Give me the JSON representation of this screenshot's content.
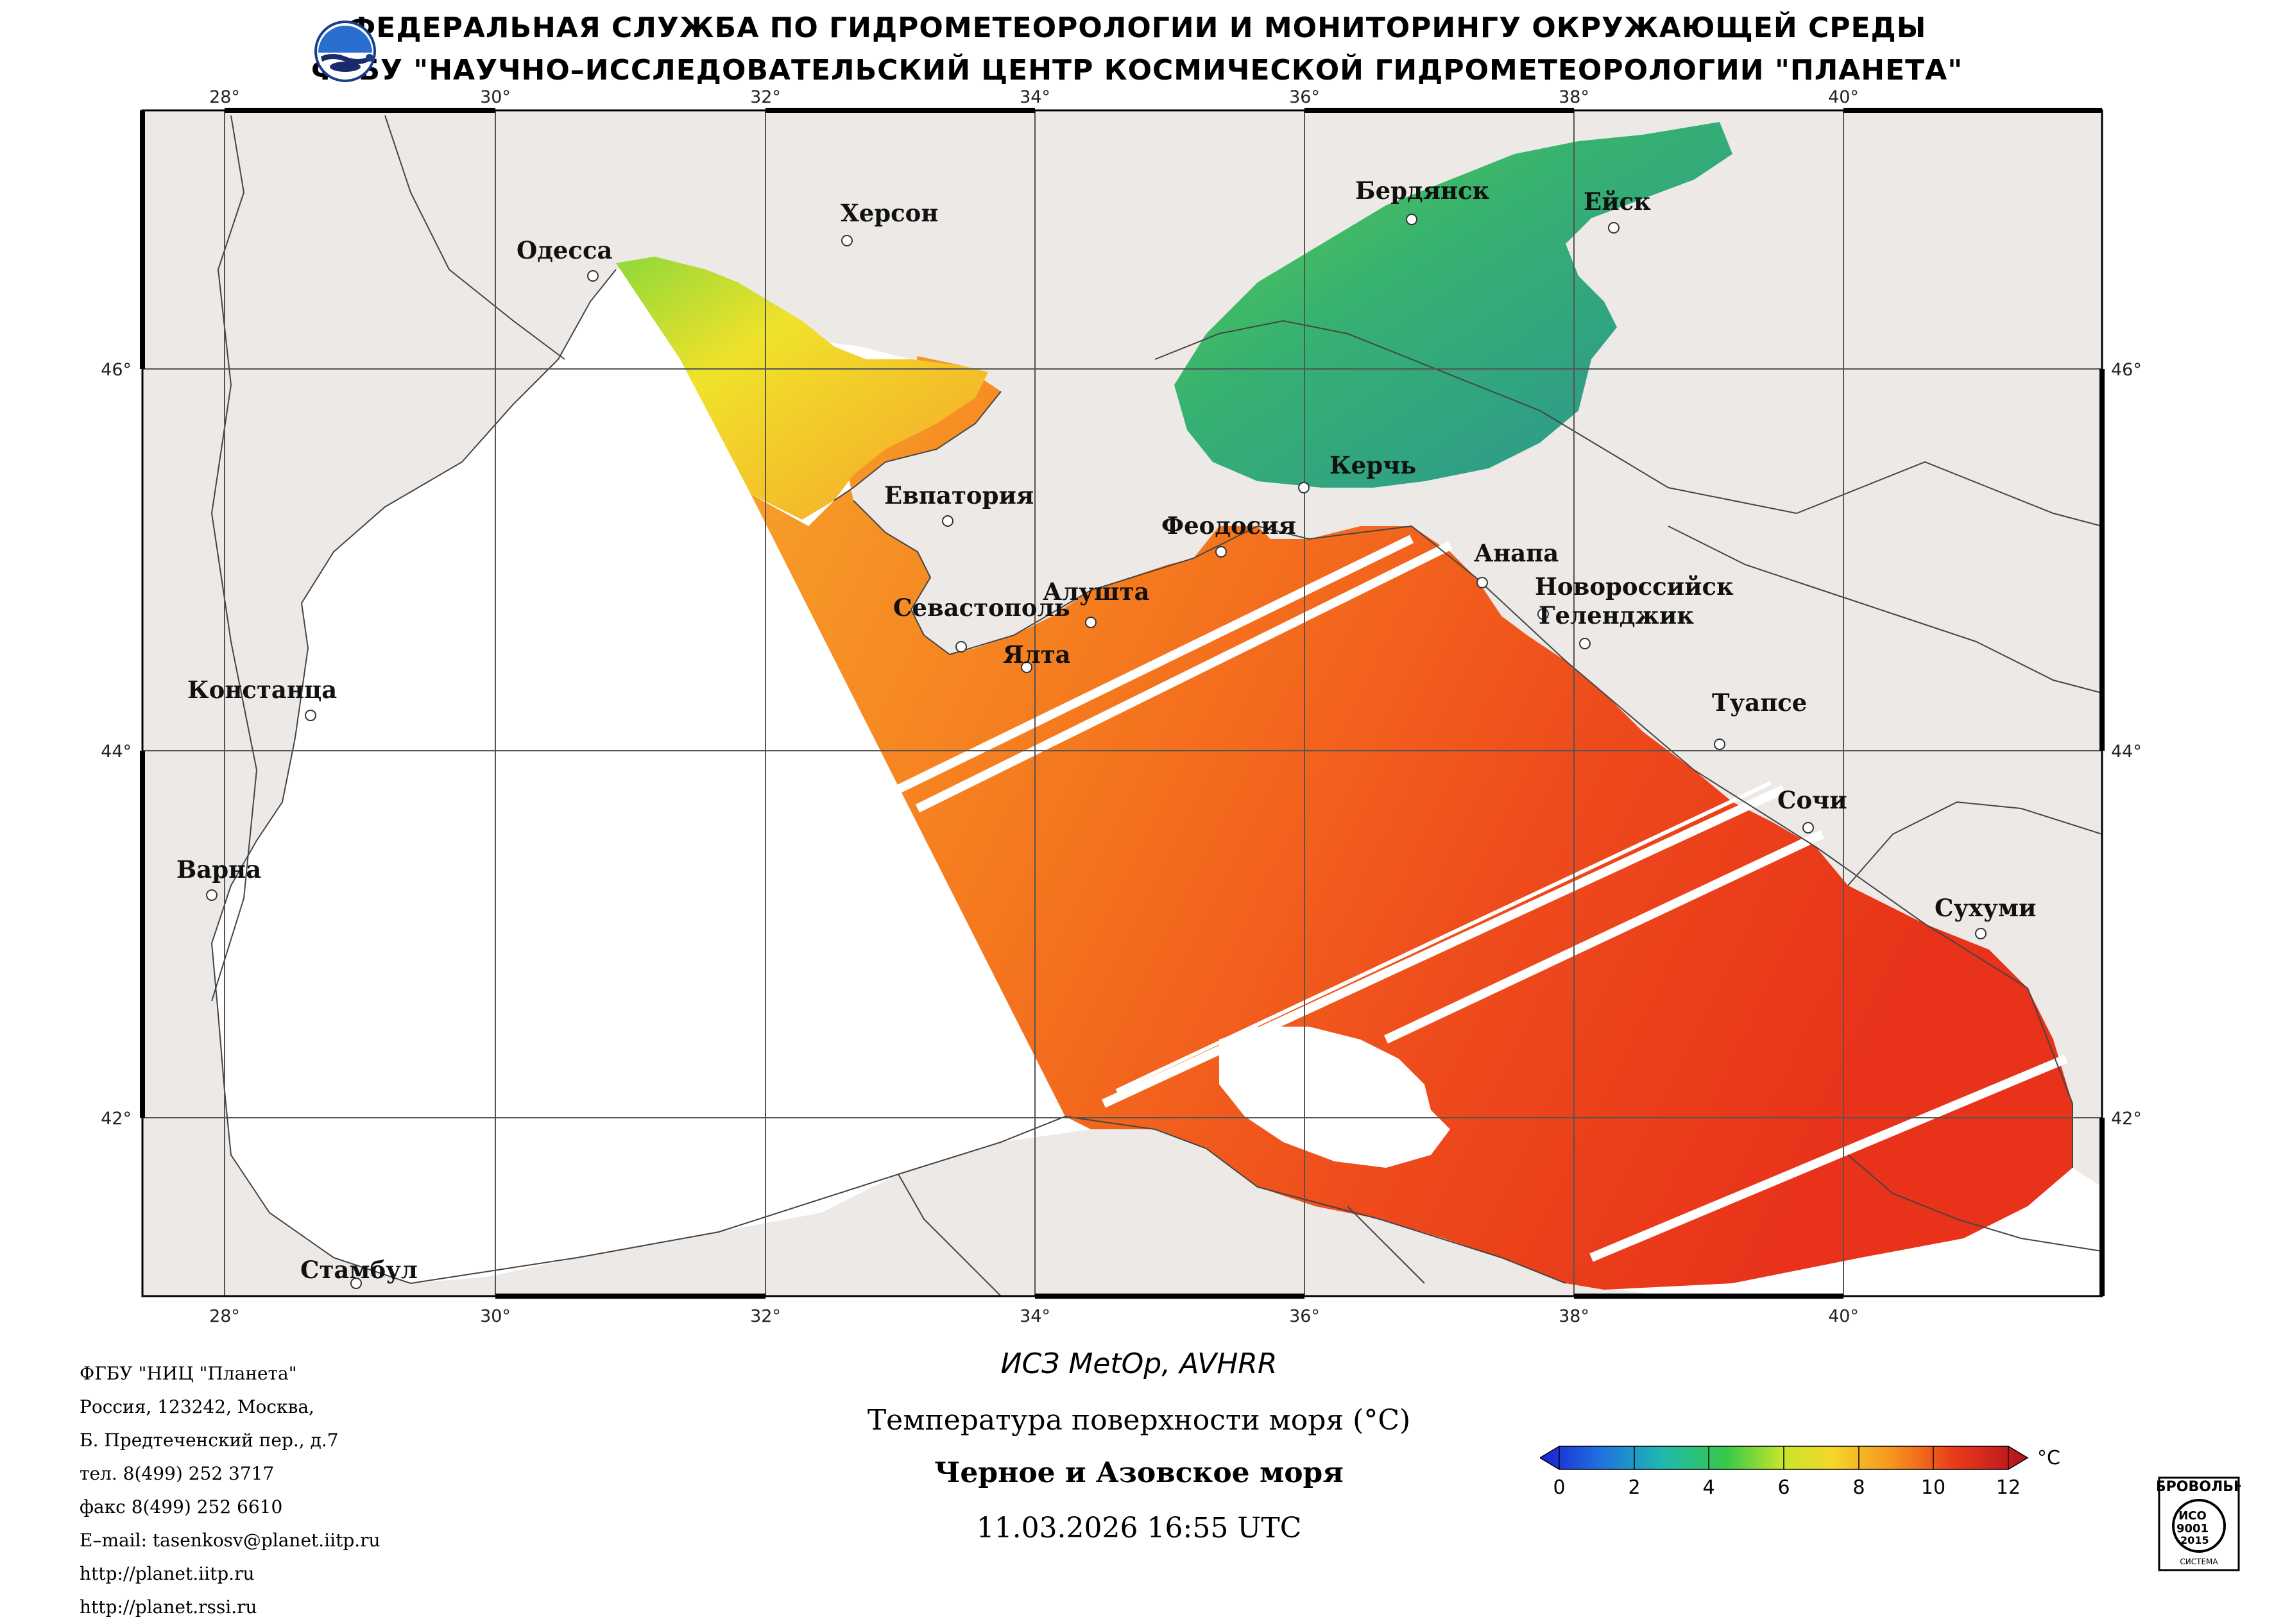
{
  "header": {
    "line1": "ФЕДЕРАЛЬНАЯ СЛУЖБА ПО ГИДРОМЕТЕОРОЛОГИИ И МОНИТОРИНГУ ОКРУЖАЮЩЕЙ СРЕДЫ",
    "line2": "ФГБУ \"НАУЧНО–ИССЛЕДОВАТЕЛЬСКИЙ ЦЕНТР КОСМИЧЕСКОЙ ГИДРОМЕТЕОРОЛОГИИ \"ПЛАНЕТА\""
  },
  "map": {
    "lon_ticks": [
      "28°",
      "30°",
      "32°",
      "34°",
      "36°",
      "38°",
      "40°"
    ],
    "lat_ticks": [
      "46°",
      "44°",
      "42°"
    ],
    "cities": {
      "odessa": "Одесса",
      "kherson": "Херсон",
      "berdyansk": "Бердянск",
      "yeysk": "Ейск",
      "evpatoria": "Евпатория",
      "kerch": "Керчь",
      "feodosia": "Феодосия",
      "anapa": "Анапа",
      "novorossiysk": "Новороссийск",
      "gelendzhik": "Геленджик",
      "sevastopol": "Севастополь",
      "alushta": "Алушта",
      "yalta": "Ялта",
      "constanta": "Констанца",
      "tuapse": "Туапсе",
      "sochi": "Сочи",
      "varna": "Варна",
      "sukhumi": "Сухуми",
      "istanbul": "Стамбул"
    }
  },
  "info": [
    "ФГБУ \"НИЦ \"Планета\"",
    "Россия, 123242, Москва,",
    "Б. Предтеченский пер., д.7",
    "тел. 8(499) 252 3717",
    "факс 8(499) 252 6610",
    "E–mail: tasenkosv@planet.iitp.ru",
    "http://planet.iitp.ru",
    "http://planet.rssi.ru"
  ],
  "caption": {
    "satellite": "ИСЗ MetOp, AVHRR",
    "parameter": "Температура поверхности моря (°C)",
    "region": "Черное и Азовское моря",
    "datetime": "11.03.2026 16:55 UTC"
  },
  "colorbar": {
    "unit": "°C",
    "ticks": [
      "0",
      "2",
      "4",
      "6",
      "8",
      "10",
      "12"
    ],
    "min": 0,
    "max": 12
  },
  "iso_badge": {
    "top": "ДОБРОВОЛЬНАЯ",
    "mid": "ИСО",
    "num": "9001",
    "year": "-2015",
    "bottom": "СИСТЕМА"
  },
  "colors": {
    "land": "#ece9e6",
    "sea_nodata": "#ffffff",
    "sst_warm": "#e8361c",
    "sst_mid": "#f58a1f",
    "sst_azov": "#2faa6e"
  }
}
